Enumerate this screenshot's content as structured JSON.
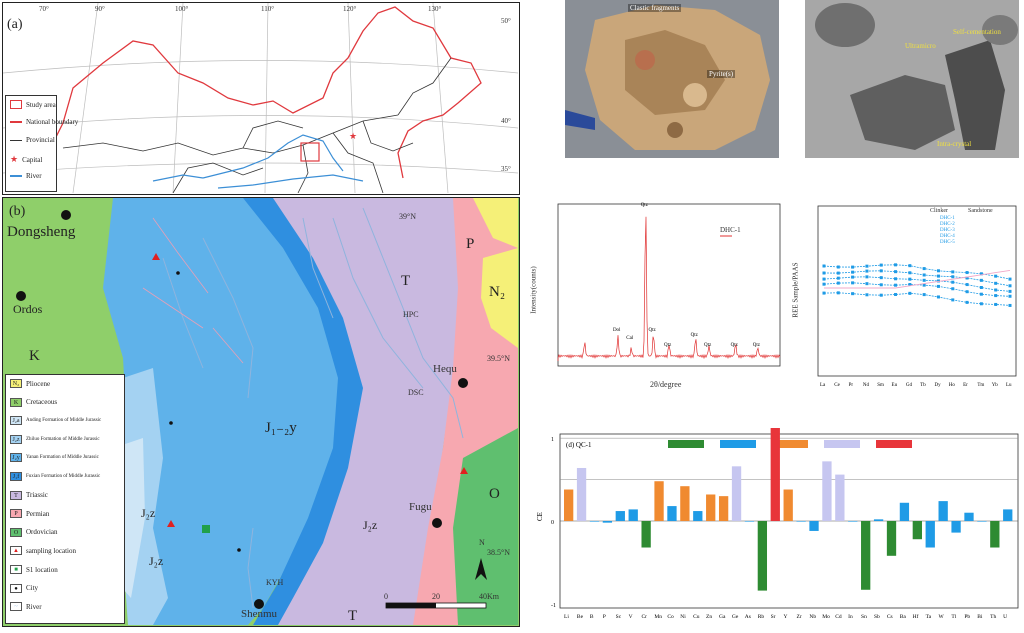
{
  "panel_a": {
    "label": "(a)",
    "lon_ticks": [
      "70°",
      "90°",
      "100°",
      "110°",
      "120°",
      "130°"
    ],
    "lat_ticks": [
      "50°",
      "40°",
      "35°"
    ],
    "legend": [
      {
        "label": "Study area",
        "icon": "red-square-icon"
      },
      {
        "label": "National boundary",
        "icon": "red-line-icon"
      },
      {
        "label": "Provincial",
        "icon": "black-line-icon"
      },
      {
        "label": "Capital",
        "icon": "red-star-icon"
      },
      {
        "label": "River",
        "icon": "blue-line-icon"
      }
    ],
    "colors": {
      "national": "#e0393e",
      "provincial": "#333333",
      "river": "#3c8fd6"
    }
  },
  "panel_b": {
    "label": "(b)",
    "cities": [
      "Dongsheng",
      "Ordos",
      "Hequ",
      "Fugu",
      "Shenmu"
    ],
    "unit_labels": [
      "K",
      "T",
      "P",
      "N₂",
      "O",
      "J₁₋₂y",
      "J₂z",
      "J₂z",
      "J₂z",
      "T"
    ],
    "river_labels": [
      "HPC",
      "DSC",
      "KYH"
    ],
    "lat_labels": [
      "39°N",
      "39.5°N",
      "38.5°N"
    ],
    "north": "N",
    "scale": [
      "0",
      "20",
      "40Km"
    ],
    "legend": [
      {
        "symbol": "N₂",
        "label": "Pliocene",
        "color": "#f5f078"
      },
      {
        "symbol": "K",
        "label": "Cretaceous",
        "color": "#8fcf6a"
      },
      {
        "symbol": "J₂a",
        "label": "Anding Formation of Middle Jurassic",
        "color": "#cfe6f6"
      },
      {
        "symbol": "J₂z",
        "label": "Zhiluo Formation of Middle Jurassic",
        "color": "#a4d2f2"
      },
      {
        "symbol": "J₂y",
        "label": "Yanan Formation of Middle Jurassic",
        "color": "#5fb2ea"
      },
      {
        "symbol": "J₁f",
        "label": "Fuxian Formation of Middle Jurassic",
        "color": "#2f8fe0"
      },
      {
        "symbol": "T",
        "label": "Triassic",
        "color": "#c9b9e0"
      },
      {
        "symbol": "P",
        "label": "Permian",
        "color": "#f7a8b0"
      },
      {
        "symbol": "O",
        "label": "Ordovician",
        "color": "#5fbf6f"
      },
      {
        "symbol": "▲",
        "label": "sampling location",
        "color": "#e02020"
      },
      {
        "symbol": "■",
        "label": "S1 location",
        "color": "#21a04a"
      },
      {
        "symbol": "●",
        "label": "City",
        "color": "#111111"
      },
      {
        "symbol": "~",
        "label": "River",
        "color": "#8fb4dd"
      }
    ]
  },
  "photo1": {
    "labels": [
      "Clastic fragments",
      "Pyrite(s)"
    ]
  },
  "photo2": {
    "labels": [
      "Ultramicro",
      "Self-cementation",
      "Intra-crystal"
    ]
  },
  "xrd": {
    "legend": "DHC-1",
    "ylabel": "Intensity(counts)",
    "xlabel": "2θ/degree",
    "peak_labels": [
      "Qtz",
      "Dol",
      "Qtz",
      "Cal",
      "Qtz",
      "Qtz",
      "Qtz",
      "Qtz",
      "Qtz"
    ],
    "colors": {
      "trace": "#e03030"
    }
  },
  "ree": {
    "ylabel": "REE Sample/PAAS",
    "legend_title_1": "Clinker",
    "legend_title_2": "Sandstone",
    "series_names": [
      "DHC-1",
      "DHC-2",
      "DHC-3",
      "DHC-4",
      "DHC-5"
    ],
    "categories": [
      "La",
      "Ce",
      "Pr",
      "Nd",
      "Sm",
      "Eu",
      "Gd",
      "Tb",
      "Dy",
      "Ho",
      "Er",
      "Tm",
      "Yb",
      "Lu"
    ],
    "colors": {
      "clinker": "#1f9be6",
      "sandstone": "#f2a8c8"
    }
  },
  "chart_data": {
    "type": "bar",
    "title": "(d) QC-1",
    "ylabel": "CE",
    "yticks": [
      -1,
      0,
      1
    ],
    "ylim": [
      -1.05,
      1.05
    ],
    "categories": [
      "Li",
      "Be",
      "B",
      "P",
      "Sc",
      "V",
      "Cr",
      "Mn",
      "Co",
      "Ni",
      "Cu",
      "Zn",
      "Ga",
      "Ge",
      "As",
      "Rb",
      "Sr",
      "Y",
      "Zr",
      "Nb",
      "Mo",
      "Cd",
      "In",
      "Sn",
      "Sb",
      "Cs",
      "Ba",
      "Hf",
      "Ta",
      "W",
      "Tl",
      "Pb",
      "Bi",
      "Th",
      "U"
    ],
    "values": [
      0.38,
      0.64,
      0,
      -0.02,
      0.12,
      0.14,
      -0.32,
      0.48,
      0.18,
      0.42,
      0.12,
      0.32,
      0.3,
      0.66,
      0,
      -0.84,
      1.17,
      0.38,
      0,
      -0.12,
      0.72,
      0.56,
      0,
      -0.83,
      0.02,
      -0.42,
      0.22,
      -0.22,
      -0.32,
      0.24,
      -0.14,
      0.1,
      0,
      -0.32,
      0.14
    ],
    "bar_colors": [
      "#f08a30",
      "#c6c6f0",
      "#1f9be6",
      "#1f9be6",
      "#1f9be6",
      "#1f9be6",
      "#2e8b32",
      "#f08a30",
      "#1f9be6",
      "#f08a30",
      "#1f9be6",
      "#f08a30",
      "#f08a30",
      "#c6c6f0",
      "#1f9be6",
      "#2e8b32",
      "#e8353a",
      "#f08a30",
      "#1f9be6",
      "#1f9be6",
      "#c6c6f0",
      "#c6c6f0",
      "#1f9be6",
      "#2e8b32",
      "#1f9be6",
      "#2e8b32",
      "#1f9be6",
      "#2e8b32",
      "#1f9be6",
      "#1f9be6",
      "#1f9be6",
      "#1f9be6",
      "#1f9be6",
      "#2e8b32",
      "#1f9be6"
    ],
    "legend_colors": [
      "#2e8b32",
      "#1f9be6",
      "#f08a30",
      "#c6c6f0",
      "#e8353a"
    ]
  }
}
